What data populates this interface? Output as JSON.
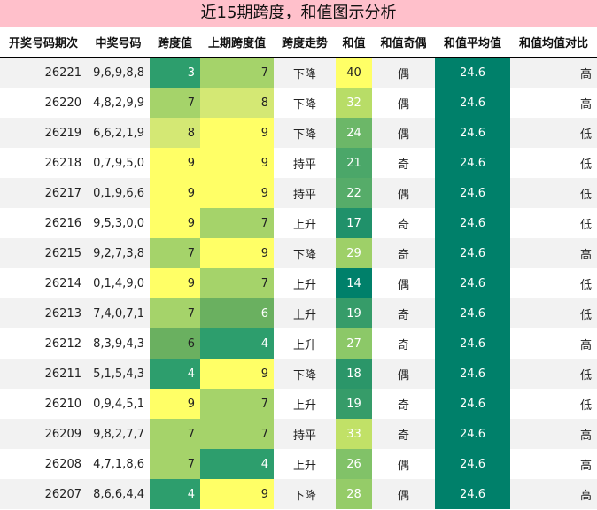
{
  "title": "近15期跨度，和值图示分析",
  "headers": [
    "开奖号码期次",
    "中奖号码",
    "跨度值",
    "上期跨度值",
    "跨度走势",
    "和值",
    "和值奇偶",
    "和值平均值",
    "和值均值对比"
  ],
  "colors": {
    "title_bg": "#ffc0cb",
    "scale": {
      "3": "#2d9e6d",
      "4": "#2d9e6d",
      "6": "#6ab060",
      "7": "#a5d36a",
      "8": "#d4e874",
      "9": "#ffff66"
    },
    "sum_dark": "#00806a",
    "avg_bg": "#00806a"
  },
  "rows": [
    {
      "issue": "26221",
      "numbers": "9,6,9,8,8",
      "span": "3",
      "prev_span": "7",
      "trend": "下降",
      "sum": "40",
      "parity": "偶",
      "avg": "24.6",
      "compare": "高"
    },
    {
      "issue": "26220",
      "numbers": "4,8,2,9,9",
      "span": "7",
      "prev_span": "8",
      "trend": "下降",
      "sum": "32",
      "parity": "偶",
      "avg": "24.6",
      "compare": "高"
    },
    {
      "issue": "26219",
      "numbers": "6,6,2,1,9",
      "span": "8",
      "prev_span": "9",
      "trend": "下降",
      "sum": "24",
      "parity": "偶",
      "avg": "24.6",
      "compare": "低"
    },
    {
      "issue": "26218",
      "numbers": "0,7,9,5,0",
      "span": "9",
      "prev_span": "9",
      "trend": "持平",
      "sum": "21",
      "parity": "奇",
      "avg": "24.6",
      "compare": "低"
    },
    {
      "issue": "26217",
      "numbers": "0,1,9,6,6",
      "span": "9",
      "prev_span": "9",
      "trend": "持平",
      "sum": "22",
      "parity": "偶",
      "avg": "24.6",
      "compare": "低"
    },
    {
      "issue": "26216",
      "numbers": "9,5,3,0,0",
      "span": "9",
      "prev_span": "7",
      "trend": "上升",
      "sum": "17",
      "parity": "奇",
      "avg": "24.6",
      "compare": "低"
    },
    {
      "issue": "26215",
      "numbers": "9,2,7,3,8",
      "span": "7",
      "prev_span": "9",
      "trend": "下降",
      "sum": "29",
      "parity": "奇",
      "avg": "24.6",
      "compare": "高"
    },
    {
      "issue": "26214",
      "numbers": "0,1,4,9,0",
      "span": "9",
      "prev_span": "7",
      "trend": "上升",
      "sum": "14",
      "parity": "偶",
      "avg": "24.6",
      "compare": "低"
    },
    {
      "issue": "26213",
      "numbers": "7,4,0,7,1",
      "span": "7",
      "prev_span": "6",
      "trend": "上升",
      "sum": "19",
      "parity": "奇",
      "avg": "24.6",
      "compare": "低"
    },
    {
      "issue": "26212",
      "numbers": "8,3,9,4,3",
      "span": "6",
      "prev_span": "4",
      "trend": "上升",
      "sum": "27",
      "parity": "奇",
      "avg": "24.6",
      "compare": "高"
    },
    {
      "issue": "26211",
      "numbers": "5,1,5,4,3",
      "span": "4",
      "prev_span": "9",
      "trend": "下降",
      "sum": "18",
      "parity": "偶",
      "avg": "24.6",
      "compare": "低"
    },
    {
      "issue": "26210",
      "numbers": "0,9,4,5,1",
      "span": "9",
      "prev_span": "7",
      "trend": "上升",
      "sum": "19",
      "parity": "奇",
      "avg": "24.6",
      "compare": "低"
    },
    {
      "issue": "26209",
      "numbers": "9,8,2,7,7",
      "span": "7",
      "prev_span": "7",
      "trend": "持平",
      "sum": "33",
      "parity": "奇",
      "avg": "24.6",
      "compare": "高"
    },
    {
      "issue": "26208",
      "numbers": "4,7,1,8,6",
      "span": "7",
      "prev_span": "4",
      "trend": "上升",
      "sum": "26",
      "parity": "偶",
      "avg": "24.6",
      "compare": "高"
    },
    {
      "issue": "26207",
      "numbers": "8,6,6,4,4",
      "span": "4",
      "prev_span": "9",
      "trend": "下降",
      "sum": "28",
      "parity": "偶",
      "avg": "24.6",
      "compare": "高"
    }
  ]
}
